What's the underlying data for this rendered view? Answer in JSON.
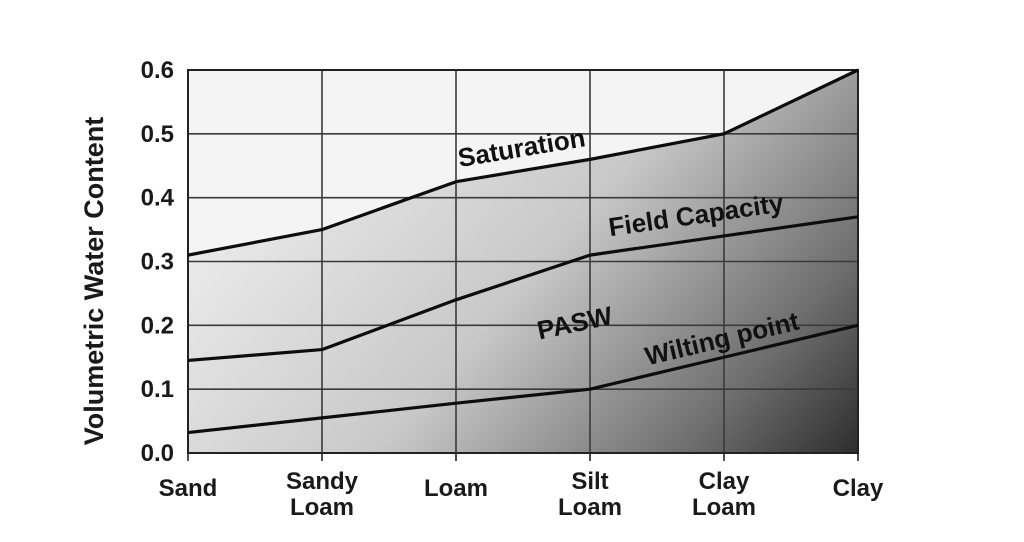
{
  "chart_data": {
    "type": "line",
    "ylabel": "Volumetric Water Content",
    "xlabel": "",
    "title": "",
    "ylim": [
      0,
      0.6
    ],
    "yticks": [
      "0.0",
      "0.1",
      "0.2",
      "0.3",
      "0.4",
      "0.5",
      "0.6"
    ],
    "categories": [
      [
        "Sand"
      ],
      [
        "Sandy",
        "Loam"
      ],
      [
        "Loam"
      ],
      [
        "Silt",
        "Loam"
      ],
      [
        "Clay",
        "Loam"
      ],
      [
        "Clay"
      ]
    ],
    "grid": true,
    "series": [
      {
        "name": "Saturation",
        "values": [
          0.31,
          0.35,
          0.425,
          0.46,
          0.5,
          0.6
        ]
      },
      {
        "name": "Field Capacity",
        "values": [
          0.145,
          0.162,
          0.24,
          0.31,
          0.34,
          0.37
        ]
      },
      {
        "name": "Wilting point",
        "values": [
          0.032,
          0.055,
          0.078,
          0.1,
          0.15,
          0.2
        ]
      }
    ],
    "annotations": [
      {
        "text": "PASW",
        "x": 3.0,
        "y": 0.19
      }
    ]
  }
}
